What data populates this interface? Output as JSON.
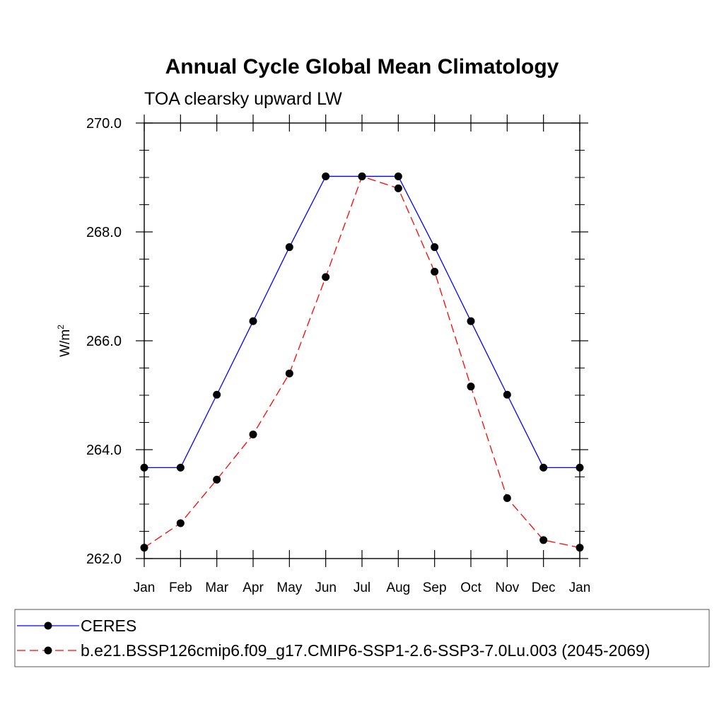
{
  "chart_data": {
    "type": "line",
    "title": "Annual Cycle Global Mean Climatology",
    "subtitle": "TOA clearsky upward LW",
    "ylabel": "W/m",
    "ylabel_superscript": "2",
    "categories": [
      "Jan",
      "Feb",
      "Mar",
      "Apr",
      "May",
      "Jun",
      "Jul",
      "Aug",
      "Sep",
      "Oct",
      "Nov",
      "Dec",
      "Jan"
    ],
    "ylim": [
      262.0,
      270.0
    ],
    "yticks": [
      "262.0",
      "264.0",
      "266.0",
      "268.0",
      "270.0"
    ],
    "series": [
      {
        "name": "CERES",
        "color": "#0000ff",
        "dashed": false,
        "values": [
          263.67,
          263.67,
          265.01,
          266.36,
          267.72,
          269.02,
          269.02,
          269.02,
          267.72,
          266.36,
          265.01,
          263.67,
          263.67
        ]
      },
      {
        "name": "b.e21.BSSP126cmip6.f09_g17.CMIP6-SSP1-2.6-SSP3-7.0Lu.003 (2045-2069)",
        "color": "#ff0000",
        "dashed": true,
        "values": [
          262.2,
          262.65,
          263.45,
          264.28,
          265.4,
          267.17,
          269.02,
          268.8,
          267.27,
          265.16,
          263.11,
          262.34,
          262.2
        ]
      }
    ]
  }
}
